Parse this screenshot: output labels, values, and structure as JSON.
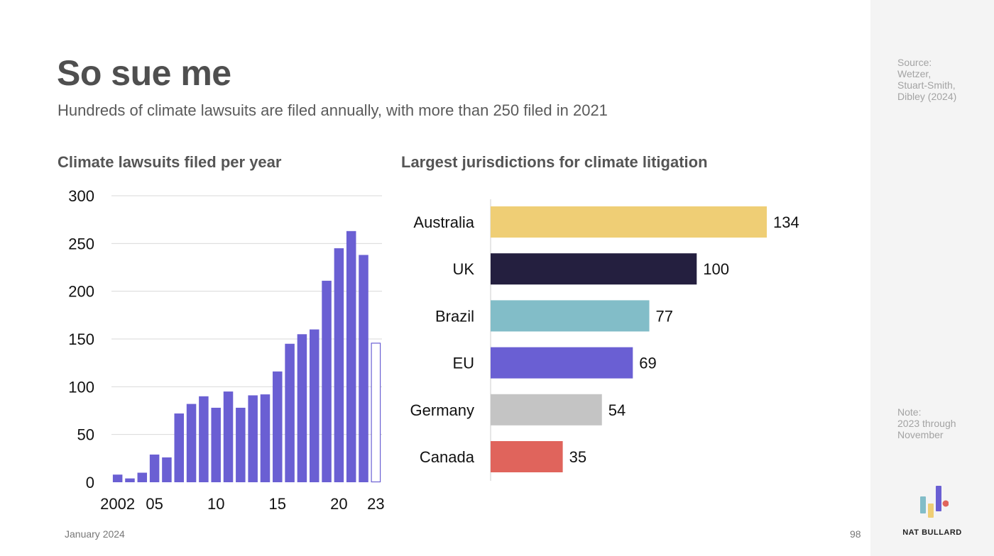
{
  "header": {
    "title": "So sue me",
    "subtitle": "Hundreds of climate lawsuits are filed annually, with more than 250 filed in 2021"
  },
  "sidebar": {
    "source": "Source:\nWetzer,\nStuart-Smith,\nDibley (2024)",
    "note": "Note:\n2023 through\nNovember",
    "brand": "NAT BULLARD"
  },
  "footer": {
    "date": "January 2024",
    "page_number": "98"
  },
  "colors": {
    "bar_blue": "#6a5fd3",
    "australia": "#efce75",
    "uk": "#241f3f",
    "brazil": "#82bdc8",
    "eu": "#6a5fd3",
    "germany": "#c4c4c4",
    "canada": "#e0645c"
  },
  "chart_data": [
    {
      "type": "bar",
      "title": "Climate lawsuits filed per year",
      "categories": [
        "2002",
        "2003",
        "2004",
        "2005",
        "2006",
        "2007",
        "2008",
        "2009",
        "2010",
        "2011",
        "2012",
        "2013",
        "2014",
        "2015",
        "2016",
        "2017",
        "2018",
        "2019",
        "2020",
        "2021",
        "2022",
        "2023"
      ],
      "values": [
        8,
        4,
        10,
        29,
        26,
        72,
        82,
        90,
        78,
        95,
        78,
        91,
        92,
        116,
        145,
        155,
        160,
        211,
        245,
        263,
        238,
        146
      ],
      "partial_last": true,
      "x_tick_labels": [
        {
          "label": "2002",
          "category": "2002"
        },
        {
          "label": "05",
          "category": "2005"
        },
        {
          "label": "10",
          "category": "2010"
        },
        {
          "label": "15",
          "category": "2015"
        },
        {
          "label": "20",
          "category": "2020"
        },
        {
          "label": "23",
          "category": "2023"
        }
      ],
      "y_ticks": [
        0,
        50,
        100,
        150,
        200,
        250,
        300
      ],
      "ylim": [
        0,
        300
      ],
      "grid": true
    },
    {
      "type": "bar",
      "orientation": "horizontal",
      "title": "Largest jurisdictions for climate litigation",
      "categories": [
        "Australia",
        "UK",
        "Brazil",
        "EU",
        "Germany",
        "Canada"
      ],
      "values": [
        134,
        100,
        77,
        69,
        54,
        35
      ],
      "colors": [
        "#efce75",
        "#241f3f",
        "#82bdc8",
        "#6a5fd3",
        "#c4c4c4",
        "#e0645c"
      ],
      "data_labels": true,
      "grid": false
    }
  ]
}
